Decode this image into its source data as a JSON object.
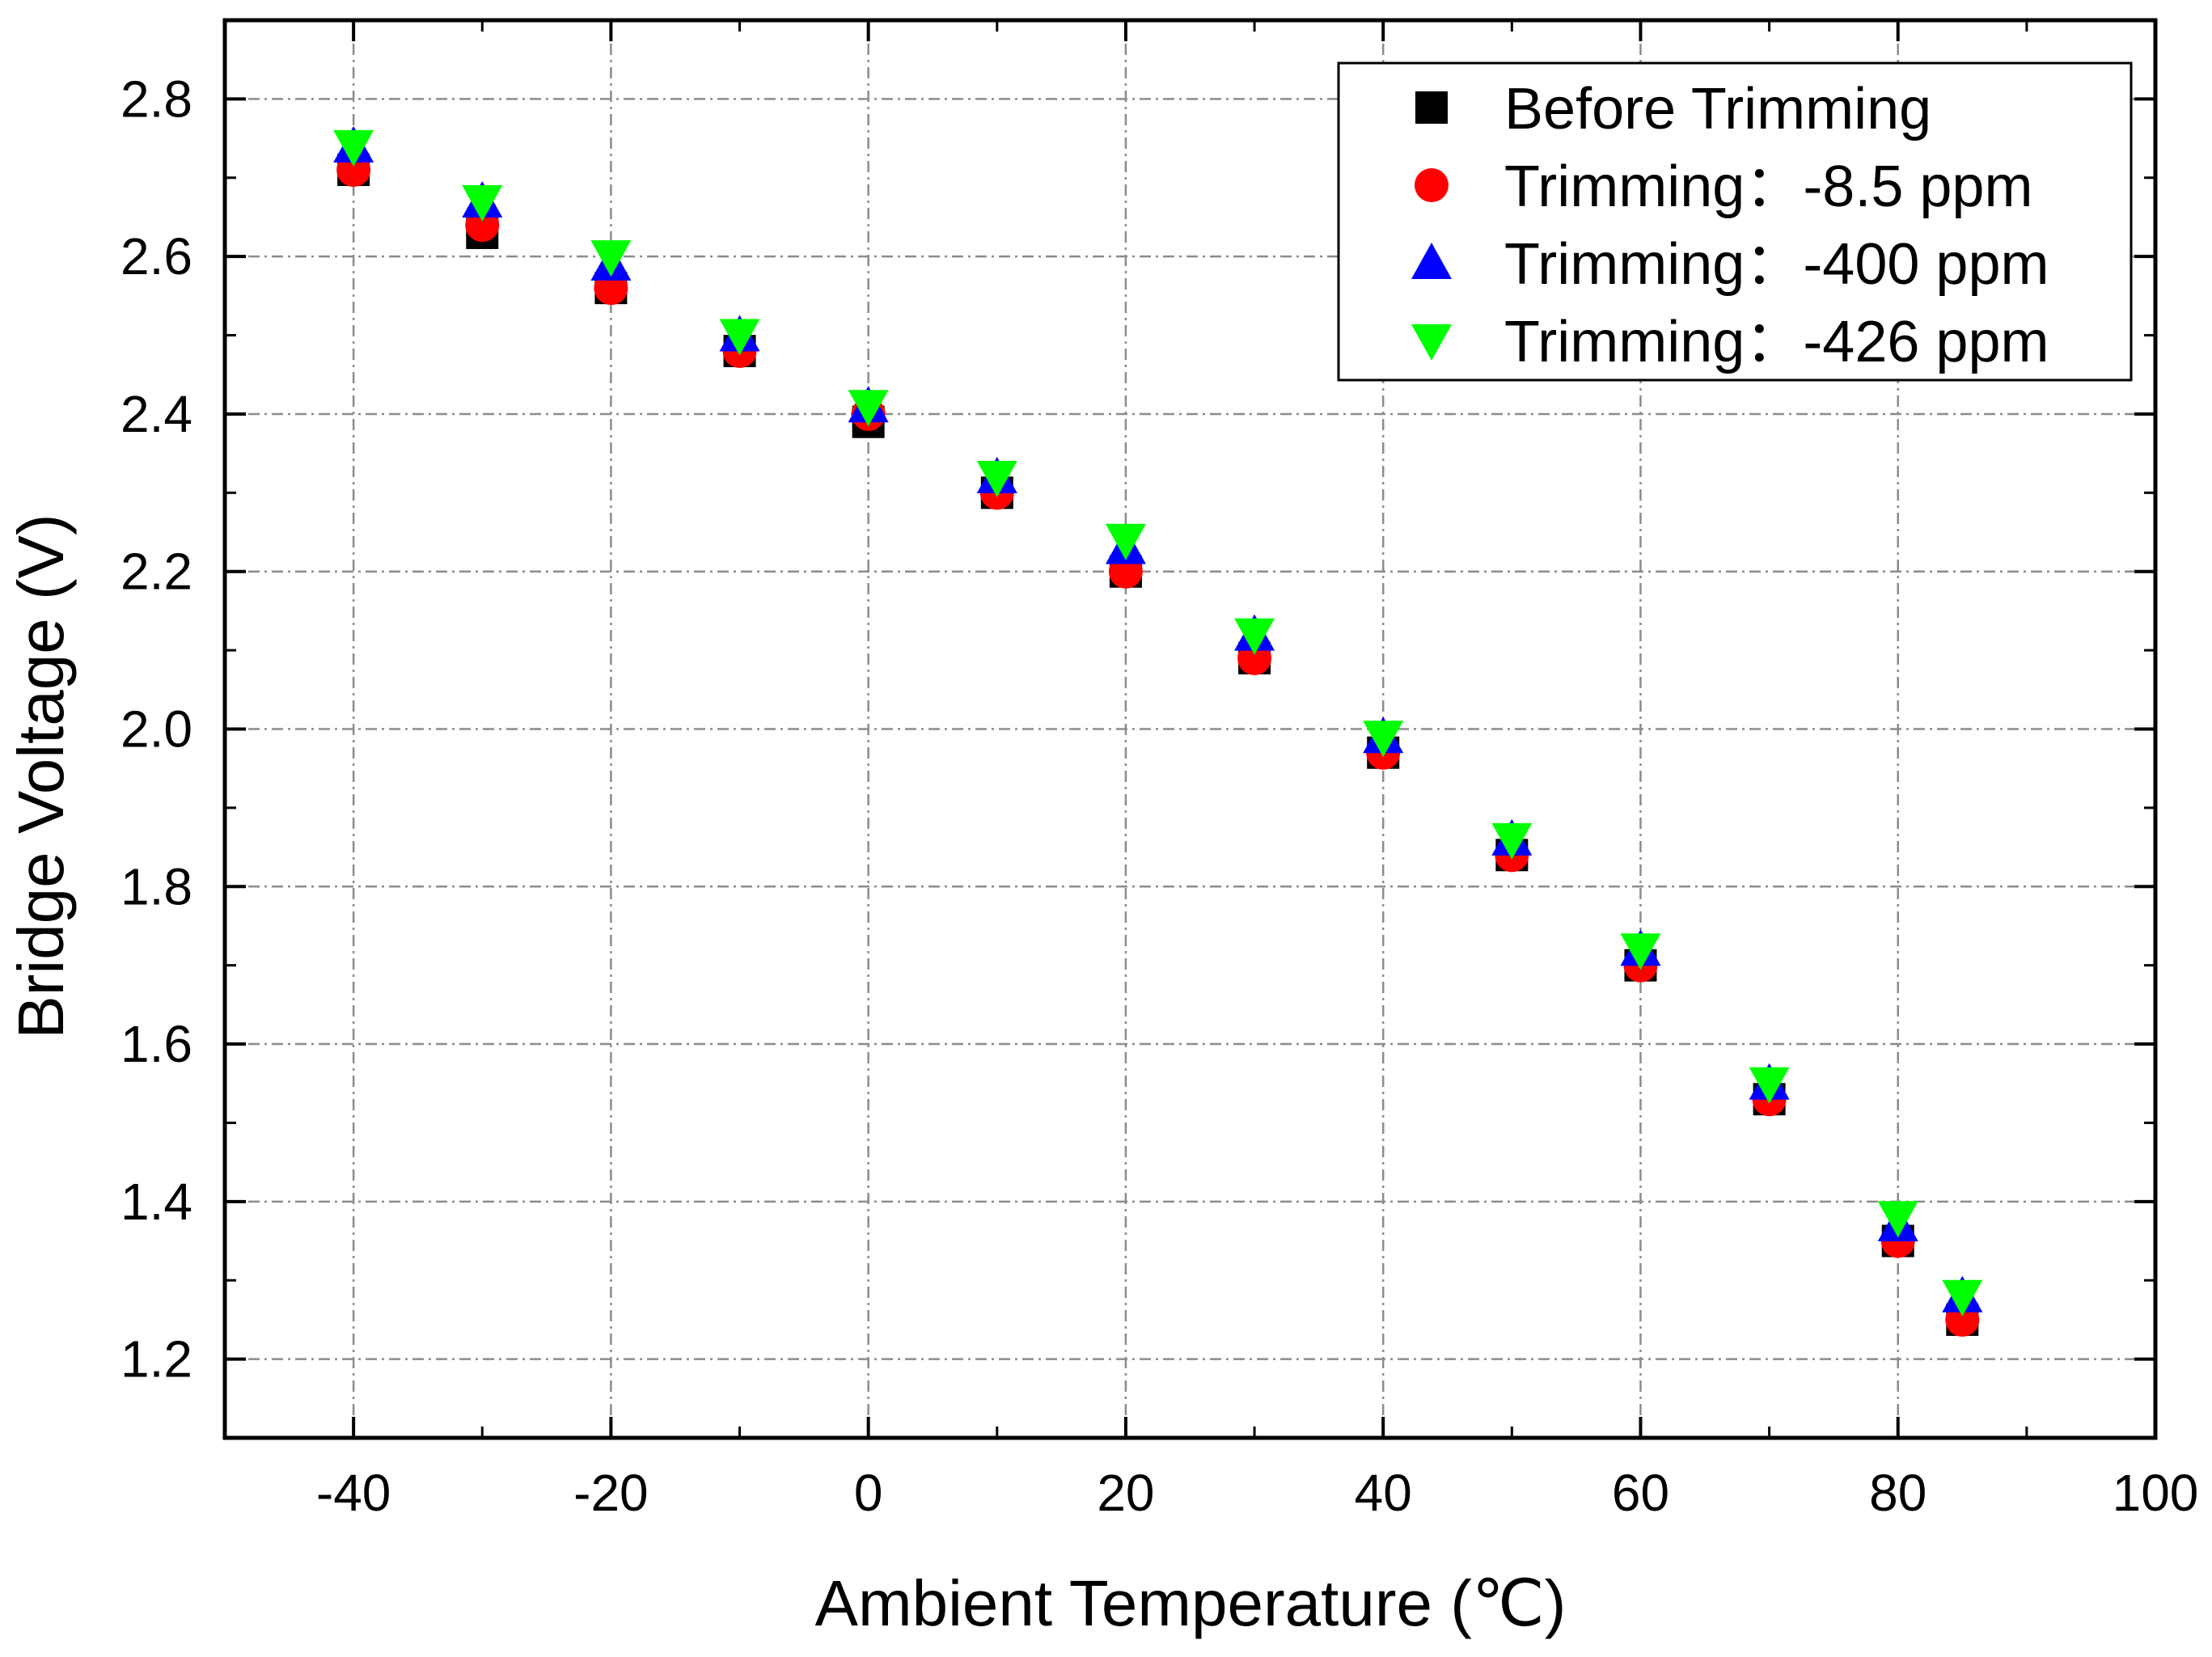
{
  "chart_data": {
    "type": "scatter",
    "title": "",
    "xlabel": "Ambient Temperature (℃)",
    "ylabel": "Bridge Voltage (V)",
    "xlim": [
      -50,
      100
    ],
    "ylim": [
      1.1,
      2.9
    ],
    "x_ticks": [
      -40,
      -20,
      0,
      20,
      40,
      60,
      80,
      100
    ],
    "y_ticks": [
      1.2,
      1.4,
      1.6,
      1.8,
      2.0,
      2.2,
      2.4,
      2.6,
      2.8
    ],
    "x_tick_labels": [
      "-40",
      "-20",
      "0",
      "20",
      "40",
      "60",
      "80",
      "100"
    ],
    "y_tick_labels": [
      "1.2",
      "1.4",
      "1.6",
      "1.8",
      "2.0",
      "2.2",
      "2.4",
      "2.6",
      "2.8"
    ],
    "grid": true,
    "legend_position": "top-right",
    "x": [
      -40,
      -30,
      -20,
      -10,
      0,
      10,
      20,
      30,
      40,
      50,
      60,
      70,
      80,
      85
    ],
    "series": [
      {
        "name": "Before Trimming",
        "marker": "square",
        "color": "#000000",
        "values": [
          2.71,
          2.63,
          2.56,
          2.48,
          2.39,
          2.3,
          2.2,
          2.09,
          1.97,
          1.84,
          1.7,
          1.53,
          1.35,
          1.25
        ]
      },
      {
        "name": "Trimming：-8.5 ppm",
        "marker": "circle",
        "color": "#ff0000",
        "values": [
          2.71,
          2.64,
          2.56,
          2.48,
          2.4,
          2.3,
          2.2,
          2.09,
          1.97,
          1.84,
          1.7,
          1.53,
          1.35,
          1.25
        ]
      },
      {
        "name": "Trimming：-400 ppm",
        "marker": "triangle-up",
        "color": "#0000ff",
        "values": [
          2.74,
          2.67,
          2.59,
          2.5,
          2.41,
          2.32,
          2.23,
          2.12,
          1.99,
          1.86,
          1.72,
          1.55,
          1.37,
          1.28
        ]
      },
      {
        "name": "Trimming：-426 ppm",
        "marker": "triangle-down",
        "color": "#00ff00",
        "values": [
          2.74,
          2.67,
          2.6,
          2.5,
          2.41,
          2.32,
          2.24,
          2.12,
          1.99,
          1.86,
          1.72,
          1.55,
          1.38,
          1.28
        ]
      }
    ]
  }
}
